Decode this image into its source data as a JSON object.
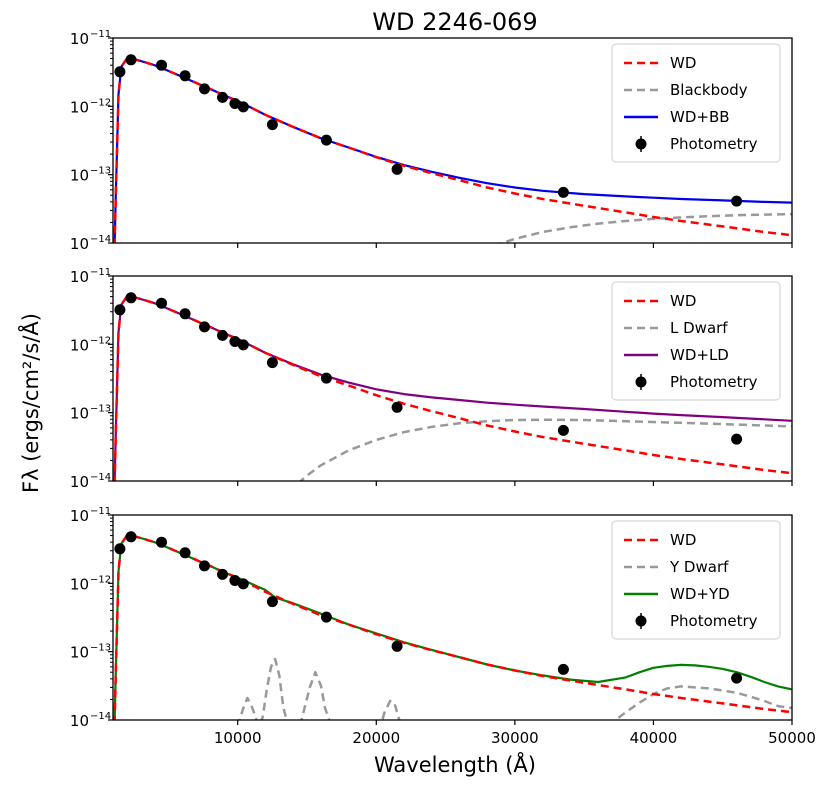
{
  "chart_data": {
    "type": "line",
    "title": "WD 2246-069",
    "xlabel": "Wavelength (Å)",
    "ylabel": "Fλ (ergs/cm²/s/Å)",
    "xlim": [
      1000,
      50000
    ],
    "ylim": [
      1e-14,
      1e-11
    ],
    "yscale": "log",
    "x_ticks": [
      {
        "value": 10000,
        "label": "10000"
      },
      {
        "value": 20000,
        "label": "20000"
      },
      {
        "value": 30000,
        "label": "30000"
      },
      {
        "value": 40000,
        "label": "40000"
      },
      {
        "value": 50000,
        "label": "50000"
      }
    ],
    "y_ticks": [
      {
        "value": 1e-14,
        "base": "10",
        "exp": "−14"
      },
      {
        "value": 1e-13,
        "base": "10",
        "exp": "−13"
      },
      {
        "value": 1e-12,
        "base": "10",
        "exp": "−12"
      },
      {
        "value": 1e-11,
        "base": "10",
        "exp": "−11"
      }
    ],
    "colors": {
      "wd": "#ff0000",
      "companion": "#999999",
      "photometry": "#000000",
      "panel1": "#0000ee",
      "panel2": "#800080",
      "panel3": "#008000"
    },
    "photometry": {
      "x": [
        1500,
        2300,
        4500,
        6200,
        7600,
        8900,
        9800,
        10400,
        12500,
        16400,
        21500,
        33500,
        46000
      ],
      "y": [
        3.2e-12,
        4.8e-12,
        4e-12,
        2.8e-12,
        1.8e-12,
        1.35e-12,
        1.1e-12,
        9.8e-13,
        5.4e-13,
        3.2e-13,
        1.2e-13,
        5.5e-14,
        4.1e-14
      ]
    },
    "wd_model": {
      "x": [
        1000,
        1200,
        1400,
        1600,
        2000,
        2500,
        3000,
        4000,
        5000,
        6000,
        7000,
        8000,
        9000,
        10000,
        12000,
        14000,
        16000,
        18000,
        20000,
        22000,
        24000,
        26000,
        28000,
        30000,
        32000,
        35000,
        38000,
        40000,
        42000,
        45000,
        48000,
        50000
      ],
      "y": [
        1e-15,
        5e-14,
        1.5e-12,
        3.8e-12,
        5e-12,
        4.9e-12,
        4.6e-12,
        4e-12,
        3.3e-12,
        2.7e-12,
        2.2e-12,
        1.8e-12,
        1.45e-12,
        1.2e-12,
        7.5e-13,
        5e-13,
        3.4e-13,
        2.5e-13,
        1.8e-13,
        1.35e-13,
        1.05e-13,
        8.3e-14,
        6.5e-14,
        5.3e-14,
        4.4e-14,
        3.5e-14,
        2.8e-14,
        2.4e-14,
        2.1e-14,
        1.75e-14,
        1.45e-14,
        1.3e-14
      ]
    },
    "panels": [
      {
        "key": "panel1",
        "legend": {
          "wd": "WD",
          "companion": "Blackbody",
          "combined": "WD+BB",
          "photometry": "Photometry"
        },
        "companion": {
          "x": [
            26000,
            28000,
            30000,
            32000,
            34000,
            36000,
            38000,
            40000,
            42000,
            44000,
            46000,
            48000,
            50000
          ],
          "y": [
            5e-15,
            8.5e-15,
            1.15e-14,
            1.45e-14,
            1.7e-14,
            1.92e-14,
            2.1e-14,
            2.25e-14,
            2.37e-14,
            2.47e-14,
            2.55e-14,
            2.6e-14,
            2.65e-14
          ]
        },
        "combined": {
          "x": [
            1000,
            1200,
            1400,
            1600,
            2000,
            2500,
            3000,
            4000,
            5000,
            6000,
            7000,
            8000,
            9000,
            10000,
            12000,
            14000,
            16000,
            18000,
            20000,
            22000,
            24000,
            26000,
            28000,
            30000,
            32000,
            35000,
            38000,
            40000,
            42000,
            45000,
            48000,
            50000
          ],
          "y": [
            1e-15,
            5e-14,
            1.5e-12,
            3.8e-12,
            5e-12,
            4.9e-12,
            4.6e-12,
            4e-12,
            3.3e-12,
            2.7e-12,
            2.2e-12,
            1.8e-12,
            1.45e-12,
            1.2e-12,
            7.5e-13,
            5e-13,
            3.4e-13,
            2.5e-13,
            1.82e-13,
            1.38e-13,
            1.1e-13,
            9e-14,
            7.5e-14,
            6.5e-14,
            5.8e-14,
            5.2e-14,
            4.8e-14,
            4.6e-14,
            4.4e-14,
            4.2e-14,
            4e-14,
            3.9e-14
          ]
        }
      },
      {
        "key": "panel2",
        "legend": {
          "wd": "WD",
          "companion": "L Dwarf",
          "combined": "WD+LD",
          "photometry": "Photometry"
        },
        "companion": {
          "x": [
            13000,
            14000,
            15000,
            16000,
            18000,
            20000,
            22000,
            24000,
            26000,
            28000,
            30000,
            32000,
            35000,
            38000,
            40000,
            42000,
            45000,
            48000,
            50000
          ],
          "y": [
            5e-15,
            8e-15,
            1.2e-14,
            1.7e-14,
            2.8e-14,
            4e-14,
            5.2e-14,
            6.2e-14,
            7e-14,
            7.5e-14,
            7.8e-14,
            7.9e-14,
            7.8e-14,
            7.5e-14,
            7.3e-14,
            7.1e-14,
            6.8e-14,
            6.5e-14,
            6.3e-14
          ]
        },
        "combined": {
          "x": [
            1000,
            1200,
            1400,
            1600,
            2000,
            2500,
            3000,
            4000,
            5000,
            6000,
            7000,
            8000,
            9000,
            10000,
            12000,
            14000,
            16000,
            18000,
            20000,
            22000,
            24000,
            26000,
            28000,
            30000,
            32000,
            35000,
            38000,
            40000,
            42000,
            45000,
            48000,
            50000
          ],
          "y": [
            1e-15,
            5e-14,
            1.5e-12,
            3.8e-12,
            5e-12,
            4.9e-12,
            4.6e-12,
            4e-12,
            3.3e-12,
            2.7e-12,
            2.2e-12,
            1.8e-12,
            1.45e-12,
            1.2e-12,
            7.5e-13,
            5.1e-13,
            3.6e-13,
            2.75e-13,
            2.2e-13,
            1.87e-13,
            1.67e-13,
            1.53e-13,
            1.4e-13,
            1.31e-13,
            1.23e-13,
            1.13e-13,
            1.03e-13,
            9.7e-14,
            9.2e-14,
            8.6e-14,
            8e-14,
            7.6e-14
          ]
        }
      },
      {
        "key": "panel3",
        "legend": {
          "wd": "WD",
          "companion": "Y Dwarf",
          "combined": "WD+YD",
          "photometry": "Photometry"
        },
        "companion": {
          "x": [
            10000,
            10400,
            10700,
            11000,
            11300,
            11500,
            11800,
            12100,
            12400,
            12700,
            13000,
            13300,
            13600,
            14000,
            14600,
            15200,
            15600,
            16000,
            16300,
            16600,
            17000,
            17500,
            20300,
            20600,
            21000,
            21300,
            21600,
            21900,
            36000,
            37000,
            38000,
            39000,
            40000,
            41000,
            42000,
            43000,
            44000,
            45000,
            46000,
            47000,
            48000,
            49000,
            50000
          ],
          "y": [
            8e-15,
            1.5e-14,
            2.1e-14,
            1.6e-14,
            1.1e-14,
            8e-15,
            1.1e-14,
            2.8e-14,
            6e-14,
            7.8e-14,
            4.5e-14,
            1.5e-14,
            9e-15,
            8e-15,
            1e-14,
            3e-14,
            5e-14,
            3.2e-14,
            1.5e-14,
            1e-14,
            8e-15,
            7e-15,
            8e-15,
            1.3e-14,
            1.9e-14,
            1.8e-14,
            1.1e-14,
            7e-15,
            7e-15,
            9e-15,
            1.3e-14,
            1.8e-14,
            2.4e-14,
            2.9e-14,
            3.1e-14,
            3e-14,
            2.9e-14,
            2.7e-14,
            2.5e-14,
            2.2e-14,
            1.9e-14,
            1.6e-14,
            1.5e-14
          ]
        },
        "combined": {
          "x": [
            1000,
            1200,
            1400,
            1600,
            2000,
            2500,
            3000,
            4000,
            5000,
            6000,
            7000,
            8000,
            9000,
            10000,
            12000,
            12700,
            14000,
            16000,
            18000,
            20000,
            22000,
            24000,
            26000,
            28000,
            30000,
            32000,
            34000,
            36000,
            38000,
            39000,
            40000,
            41000,
            42000,
            43000,
            44000,
            45000,
            46000,
            47000,
            48000,
            49000,
            50000
          ],
          "y": [
            1e-15,
            5e-14,
            1.5e-12,
            3.8e-12,
            5e-12,
            4.9e-12,
            4.6e-12,
            4e-12,
            3.3e-12,
            2.7e-12,
            2.2e-12,
            1.8e-12,
            1.45e-12,
            1.21e-12,
            8e-13,
            6.2e-13,
            5.1e-13,
            3.6e-13,
            2.5e-13,
            1.85e-13,
            1.37e-13,
            1.06e-13,
            8.3e-14,
            6.5e-14,
            5.3e-14,
            4.5e-14,
            3.9e-14,
            3.6e-14,
            4.2e-14,
            5e-14,
            5.8e-14,
            6.2e-14,
            6.4e-14,
            6.3e-14,
            6e-14,
            5.6e-14,
            5e-14,
            4.3e-14,
            3.6e-14,
            3.1e-14,
            2.8e-14
          ]
        }
      }
    ]
  }
}
